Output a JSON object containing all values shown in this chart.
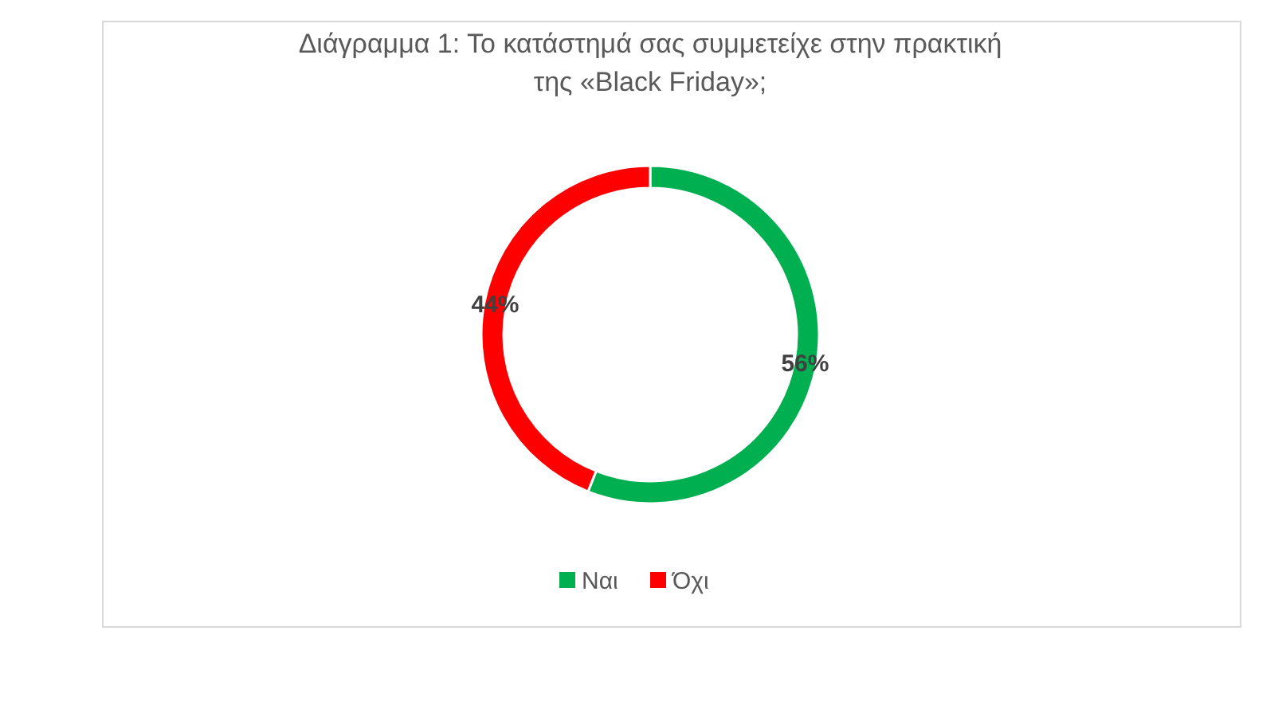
{
  "chart_data": {
    "type": "donut",
    "title": "Διάγραμμα 1: Το κατάστημά σας συμμετείχε στην πρακτική\nτης «Black Friday»;",
    "categories": [
      "Ναι",
      "Όχι"
    ],
    "values": [
      56,
      44
    ],
    "colors": [
      "#00b050",
      "#ff0000"
    ],
    "value_labels": [
      "56%",
      "44%"
    ],
    "legend": "bottom"
  }
}
